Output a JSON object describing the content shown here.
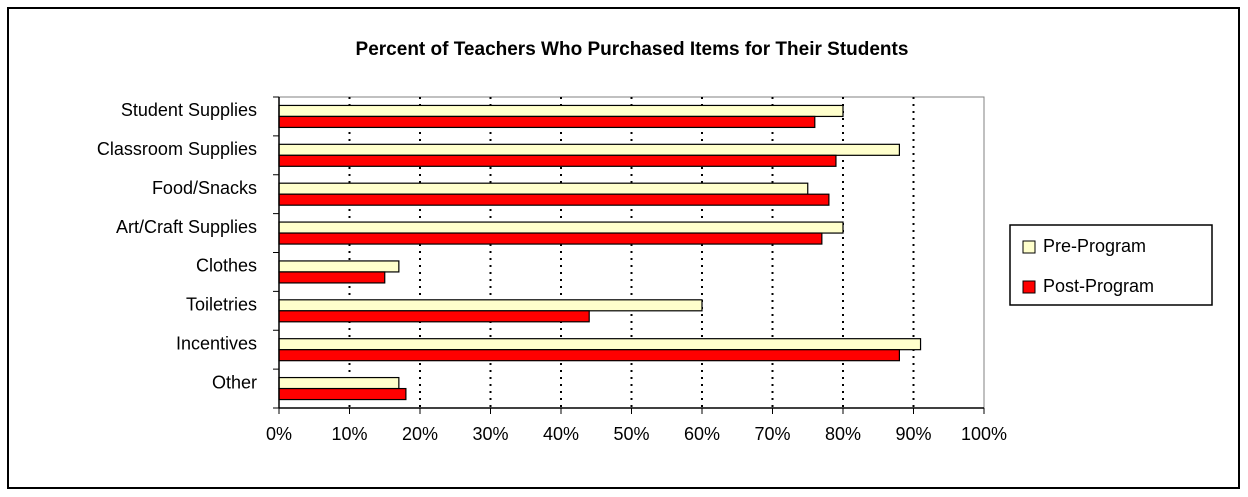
{
  "chart_data": {
    "type": "hbar",
    "title": "Percent of Teachers Who Purchased Items for Their Students",
    "categories": [
      "Student Supplies",
      "Classroom Supplies",
      "Food/Snacks",
      "Art/Craft Supplies",
      "Clothes",
      "Toiletries",
      "Incentives",
      "Other"
    ],
    "series": [
      {
        "name": "Pre-Program",
        "color": "#ffffcc",
        "values": [
          80,
          88,
          75,
          80,
          17,
          60,
          91,
          17
        ]
      },
      {
        "name": "Post-Program",
        "color": "#ff0000",
        "values": [
          76,
          79,
          78,
          77,
          15,
          44,
          88,
          18
        ]
      }
    ],
    "xlim": [
      0,
      100
    ],
    "xticks": [
      {
        "value": 0,
        "label": "0%"
      },
      {
        "value": 10,
        "label": "10%"
      },
      {
        "value": 20,
        "label": "20%"
      },
      {
        "value": 30,
        "label": "30%"
      },
      {
        "value": 40,
        "label": "40%"
      },
      {
        "value": 50,
        "label": "50%"
      },
      {
        "value": 60,
        "label": "60%"
      },
      {
        "value": 70,
        "label": "70%"
      },
      {
        "value": 80,
        "label": "80%"
      },
      {
        "value": 90,
        "label": "90%"
      },
      {
        "value": 100,
        "label": "100%"
      }
    ],
    "grid": true,
    "legend": "right"
  }
}
